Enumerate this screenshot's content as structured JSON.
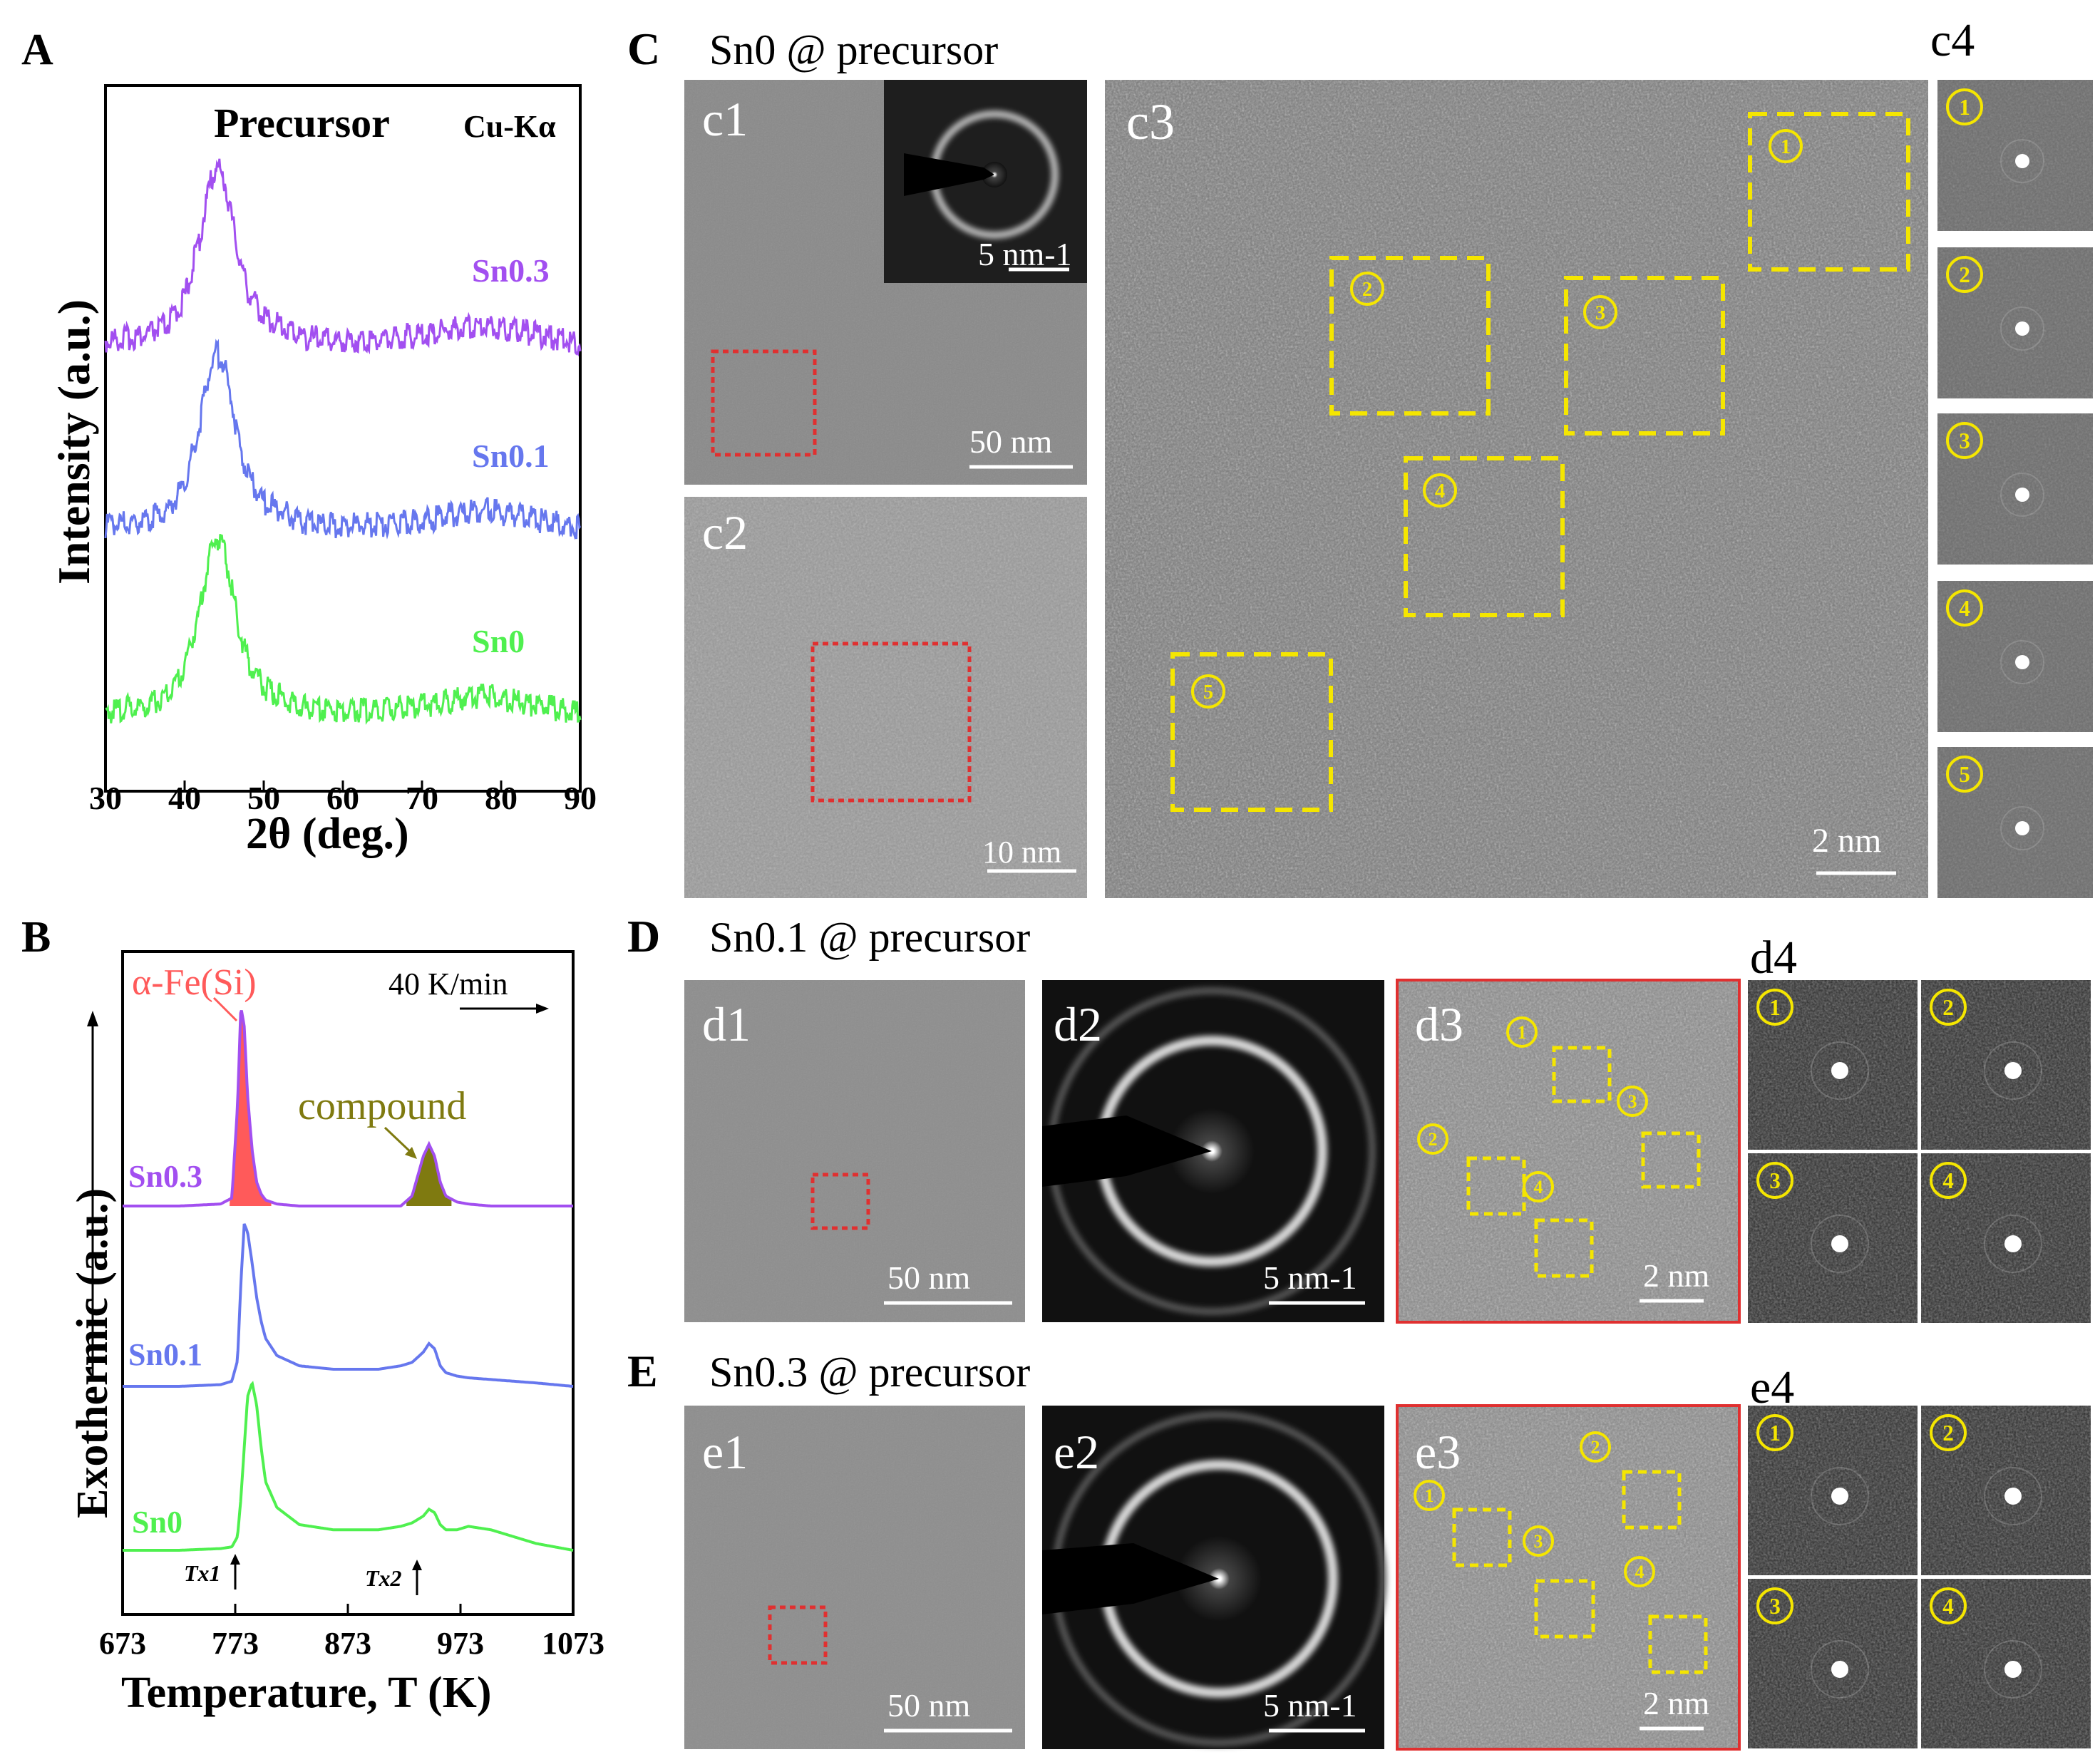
{
  "panels": {
    "A": {
      "label": "A",
      "title": "Precursor",
      "source": "Cu-Kα",
      "xlabel": "2θ (deg.)",
      "ylabel": "Intensity (a.u.)",
      "xticks": [
        "30",
        "40",
        "50",
        "60",
        "70",
        "80",
        "90"
      ]
    },
    "B": {
      "label": "B",
      "phase1": "α-Fe(Si)",
      "phase2": "compound",
      "rate": "40 K/min",
      "xlabel": "Temperature, T (K)",
      "ylabel": "Exothermic (a.u.)",
      "tx1": "Tx1",
      "tx2": "Tx2",
      "xticks": [
        "673",
        "773",
        "873",
        "973",
        "1073"
      ]
    },
    "C": {
      "label": "C",
      "title": "Sn0 @ precursor",
      "c1": "c1",
      "c2": "c2",
      "c3": "c3",
      "c4": "c4",
      "scale_c1": "50 nm",
      "scale_c1_inset": "5 nm-1",
      "scale_c2": "10 nm",
      "scale_c3": "2 nm",
      "markers": [
        "①",
        "②",
        "③",
        "④",
        "⑤"
      ]
    },
    "D": {
      "label": "D",
      "title": "Sn0.1 @ precursor",
      "d1": "d1",
      "d2": "d2",
      "d3": "d3",
      "d4": "d4",
      "scale_d1": "50 nm",
      "scale_d2": "5 nm-1",
      "scale_d3": "2 nm",
      "markers": [
        "①",
        "②",
        "③",
        "④"
      ]
    },
    "E": {
      "label": "E",
      "title": "Sn0.3 @ precursor",
      "e1": "e1",
      "e2": "e2",
      "e3": "e3",
      "e4": "e4",
      "scale_e1": "50 nm",
      "scale_e2": "5 nm-1",
      "scale_e3": "2 nm",
      "markers": [
        "①",
        "②",
        "③",
        "④"
      ]
    }
  },
  "colors": {
    "Sn0": "#4ff04f",
    "Sn0.1": "#6677ee",
    "Sn0.3": "#a24ff0",
    "alphaFe": "#ff5a5a",
    "compound": "#7f7a10",
    "marker": "#f5e600",
    "roi": "#e03030"
  },
  "chart_data": [
    {
      "type": "line",
      "title": "Precursor",
      "xlabel": "2θ (deg.)",
      "ylabel": "Intensity (a.u.)",
      "xlim": [
        30,
        90
      ],
      "x": [
        30,
        35,
        38,
        40,
        42,
        43,
        44,
        45,
        46,
        47,
        48,
        50,
        55,
        60,
        65,
        70,
        75,
        78,
        80,
        85,
        90
      ],
      "series": [
        {
          "name": "Sn0.3",
          "values": [
            0.05,
            0.08,
            0.14,
            0.28,
            0.62,
            0.86,
            1.0,
            0.92,
            0.7,
            0.48,
            0.32,
            0.18,
            0.07,
            0.05,
            0.06,
            0.08,
            0.12,
            0.14,
            0.12,
            0.08,
            0.04
          ]
        },
        {
          "name": "Sn0.1",
          "values": [
            0.05,
            0.08,
            0.14,
            0.28,
            0.62,
            0.86,
            1.0,
            0.92,
            0.7,
            0.48,
            0.32,
            0.18,
            0.07,
            0.05,
            0.06,
            0.08,
            0.12,
            0.14,
            0.12,
            0.08,
            0.04
          ]
        },
        {
          "name": "Sn0",
          "values": [
            0.05,
            0.08,
            0.14,
            0.28,
            0.62,
            0.86,
            1.0,
            0.92,
            0.7,
            0.48,
            0.32,
            0.18,
            0.07,
            0.05,
            0.06,
            0.08,
            0.12,
            0.14,
            0.12,
            0.08,
            0.04
          ]
        }
      ]
    },
    {
      "type": "line",
      "title": "",
      "xlabel": "Temperature, T (K)",
      "ylabel": "Exothermic (a.u.)",
      "xlim": [
        673,
        1073
      ],
      "x": [
        673,
        723,
        760,
        770,
        775,
        778,
        781,
        784,
        788,
        792,
        796,
        800,
        810,
        830,
        860,
        900,
        920,
        930,
        940,
        945,
        950,
        955,
        960,
        970,
        980,
        1000,
        1020,
        1040,
        1073
      ],
      "series": [
        {
          "name": "Sn0.3",
          "values": [
            0,
            0,
            0.01,
            0.04,
            0.5,
            1.0,
            0.9,
            0.55,
            0.28,
            0.12,
            0.06,
            0.03,
            0.01,
            0,
            0,
            0,
            0,
            0.05,
            0.25,
            0.31,
            0.25,
            0.12,
            0.05,
            0.02,
            0.01,
            0,
            0,
            0,
            0
          ]
        },
        {
          "name": "Sn0.1",
          "values": [
            0,
            0,
            0.01,
            0.03,
            0.15,
            0.6,
            0.95,
            0.9,
            0.72,
            0.52,
            0.38,
            0.28,
            0.18,
            0.12,
            0.1,
            0.1,
            0.12,
            0.14,
            0.2,
            0.25,
            0.22,
            0.12,
            0.08,
            0.06,
            0.05,
            0.04,
            0.03,
            0.02,
            0
          ]
        },
        {
          "name": "Sn0",
          "values": [
            0,
            0,
            0.01,
            0.02,
            0.08,
            0.3,
            0.6,
            0.9,
            0.98,
            0.85,
            0.6,
            0.4,
            0.25,
            0.15,
            0.12,
            0.12,
            0.14,
            0.16,
            0.2,
            0.24,
            0.22,
            0.15,
            0.12,
            0.12,
            0.14,
            0.12,
            0.08,
            0.04,
            0
          ]
        }
      ]
    }
  ]
}
